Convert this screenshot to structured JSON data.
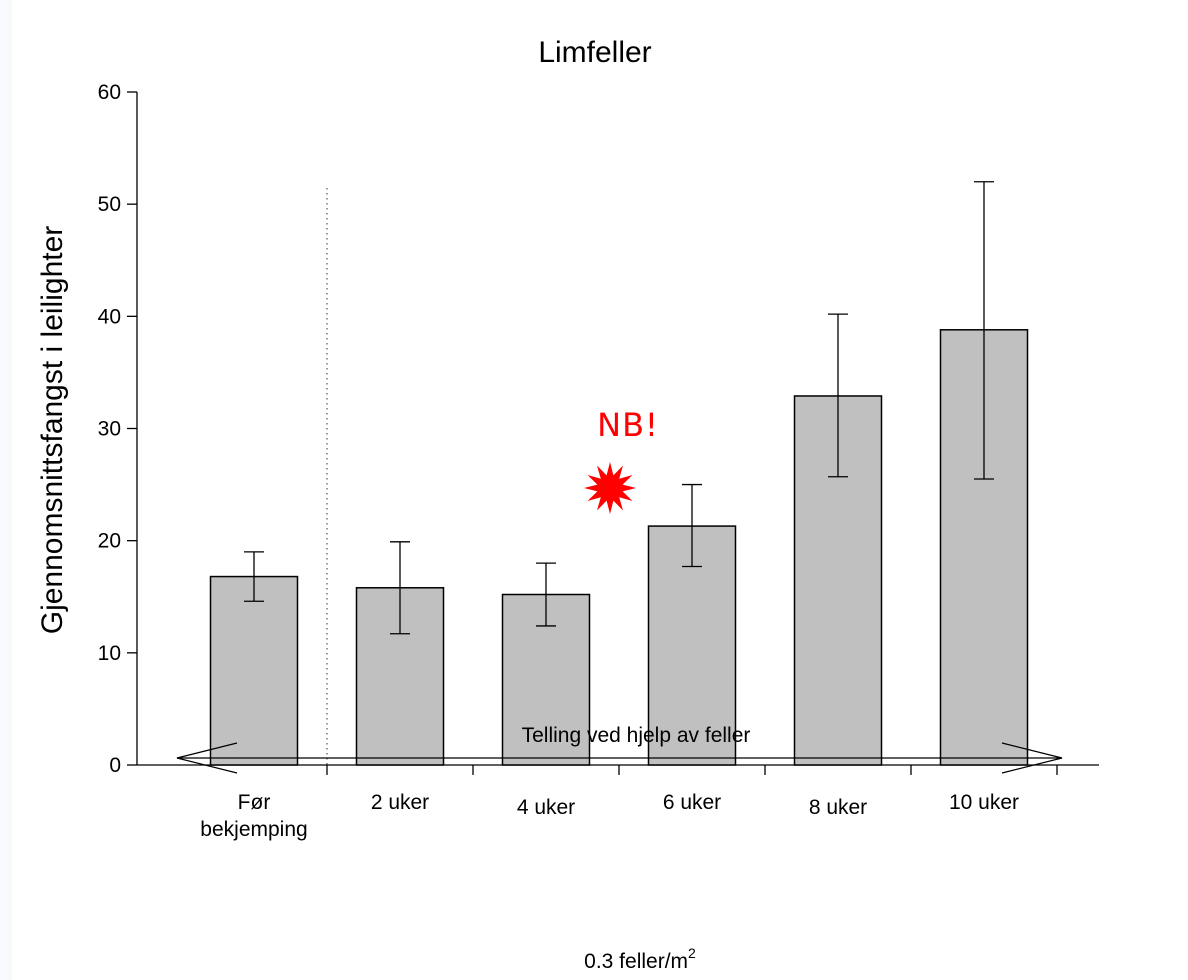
{
  "chart_data": {
    "type": "bar",
    "title": "Limfeller",
    "ylabel": "Gjennomsnittsfangst i leilighter",
    "ylim": [
      0,
      60
    ],
    "yticks": [
      0,
      10,
      20,
      30,
      40,
      50,
      60
    ],
    "categories": [
      [
        "Før",
        "bekjemping"
      ],
      [
        "2 uker"
      ],
      [
        "4 uker"
      ],
      [
        "6 uker"
      ],
      [
        "8 uker"
      ],
      [
        "10 uker"
      ]
    ],
    "values": [
      16.8,
      15.8,
      15.2,
      21.3,
      32.9,
      38.8
    ],
    "error_low": [
      14.6,
      11.7,
      12.4,
      17.7,
      25.7,
      25.5
    ],
    "error_high": [
      19.0,
      19.9,
      18.0,
      25.0,
      40.2,
      52.0
    ],
    "bar_color": "#c0c0c0",
    "grid": false,
    "separator_after_category": 0
  },
  "annotation": {
    "text": "NB!",
    "color": "#ff0000",
    "icon": "starburst-icon"
  },
  "span": {
    "label": "Telling ved hjelp av feller",
    "sublabel_prefix": "0.3 feller/m",
    "sublabel_sup": "2",
    "icon": "double-arrow-icon"
  }
}
